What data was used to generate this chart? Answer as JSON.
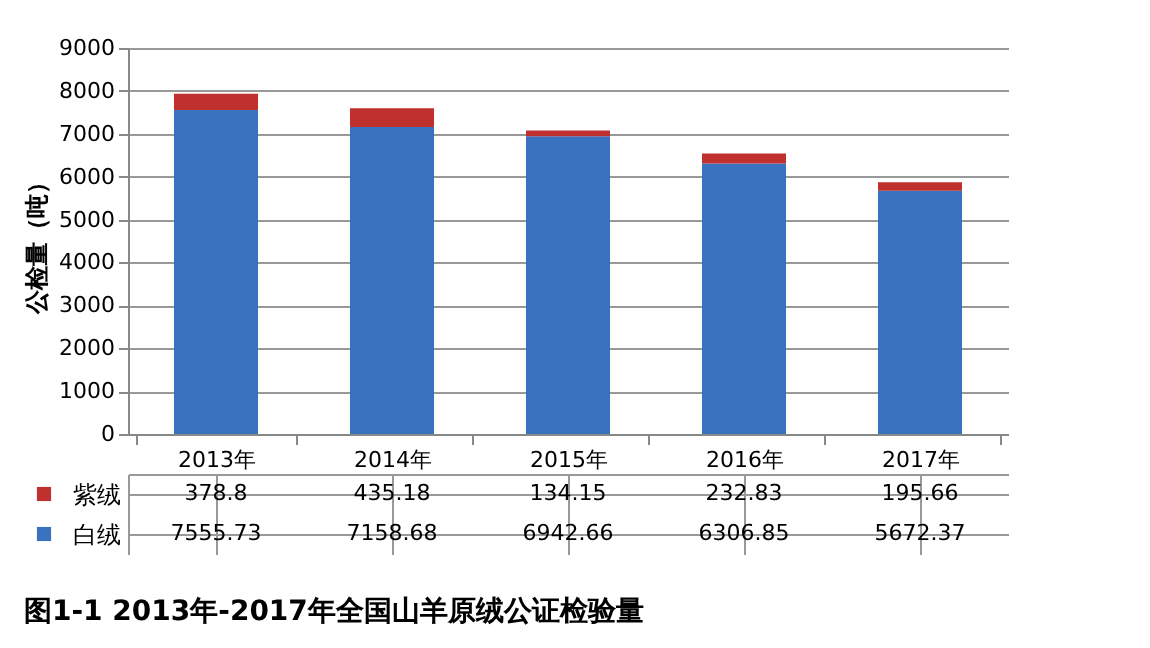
{
  "chart_data": {
    "type": "bar",
    "title": "图1-1  2013年-2017年全国山羊原绒公证检验量",
    "ylabel": "公检量（吨）",
    "categories": [
      "2013年",
      "2014年",
      "2015年",
      "2016年",
      "2017年"
    ],
    "series": [
      {
        "name": "白绒",
        "color": "#3a72c0",
        "values": [
          7555.73,
          7158.68,
          6942.66,
          6306.85,
          5672.37
        ]
      },
      {
        "name": "紫绒",
        "color": "#c0302e",
        "values": [
          378.8,
          435.18,
          134.15,
          232.83,
          195.66
        ]
      }
    ],
    "stacked": true,
    "ylim": [
      0,
      9000
    ],
    "yticks": [
      0,
      1000,
      2000,
      3000,
      4000,
      5000,
      6000,
      7000,
      8000,
      9000
    ],
    "grid": "y",
    "data_labels": true,
    "legend": "bottom"
  }
}
